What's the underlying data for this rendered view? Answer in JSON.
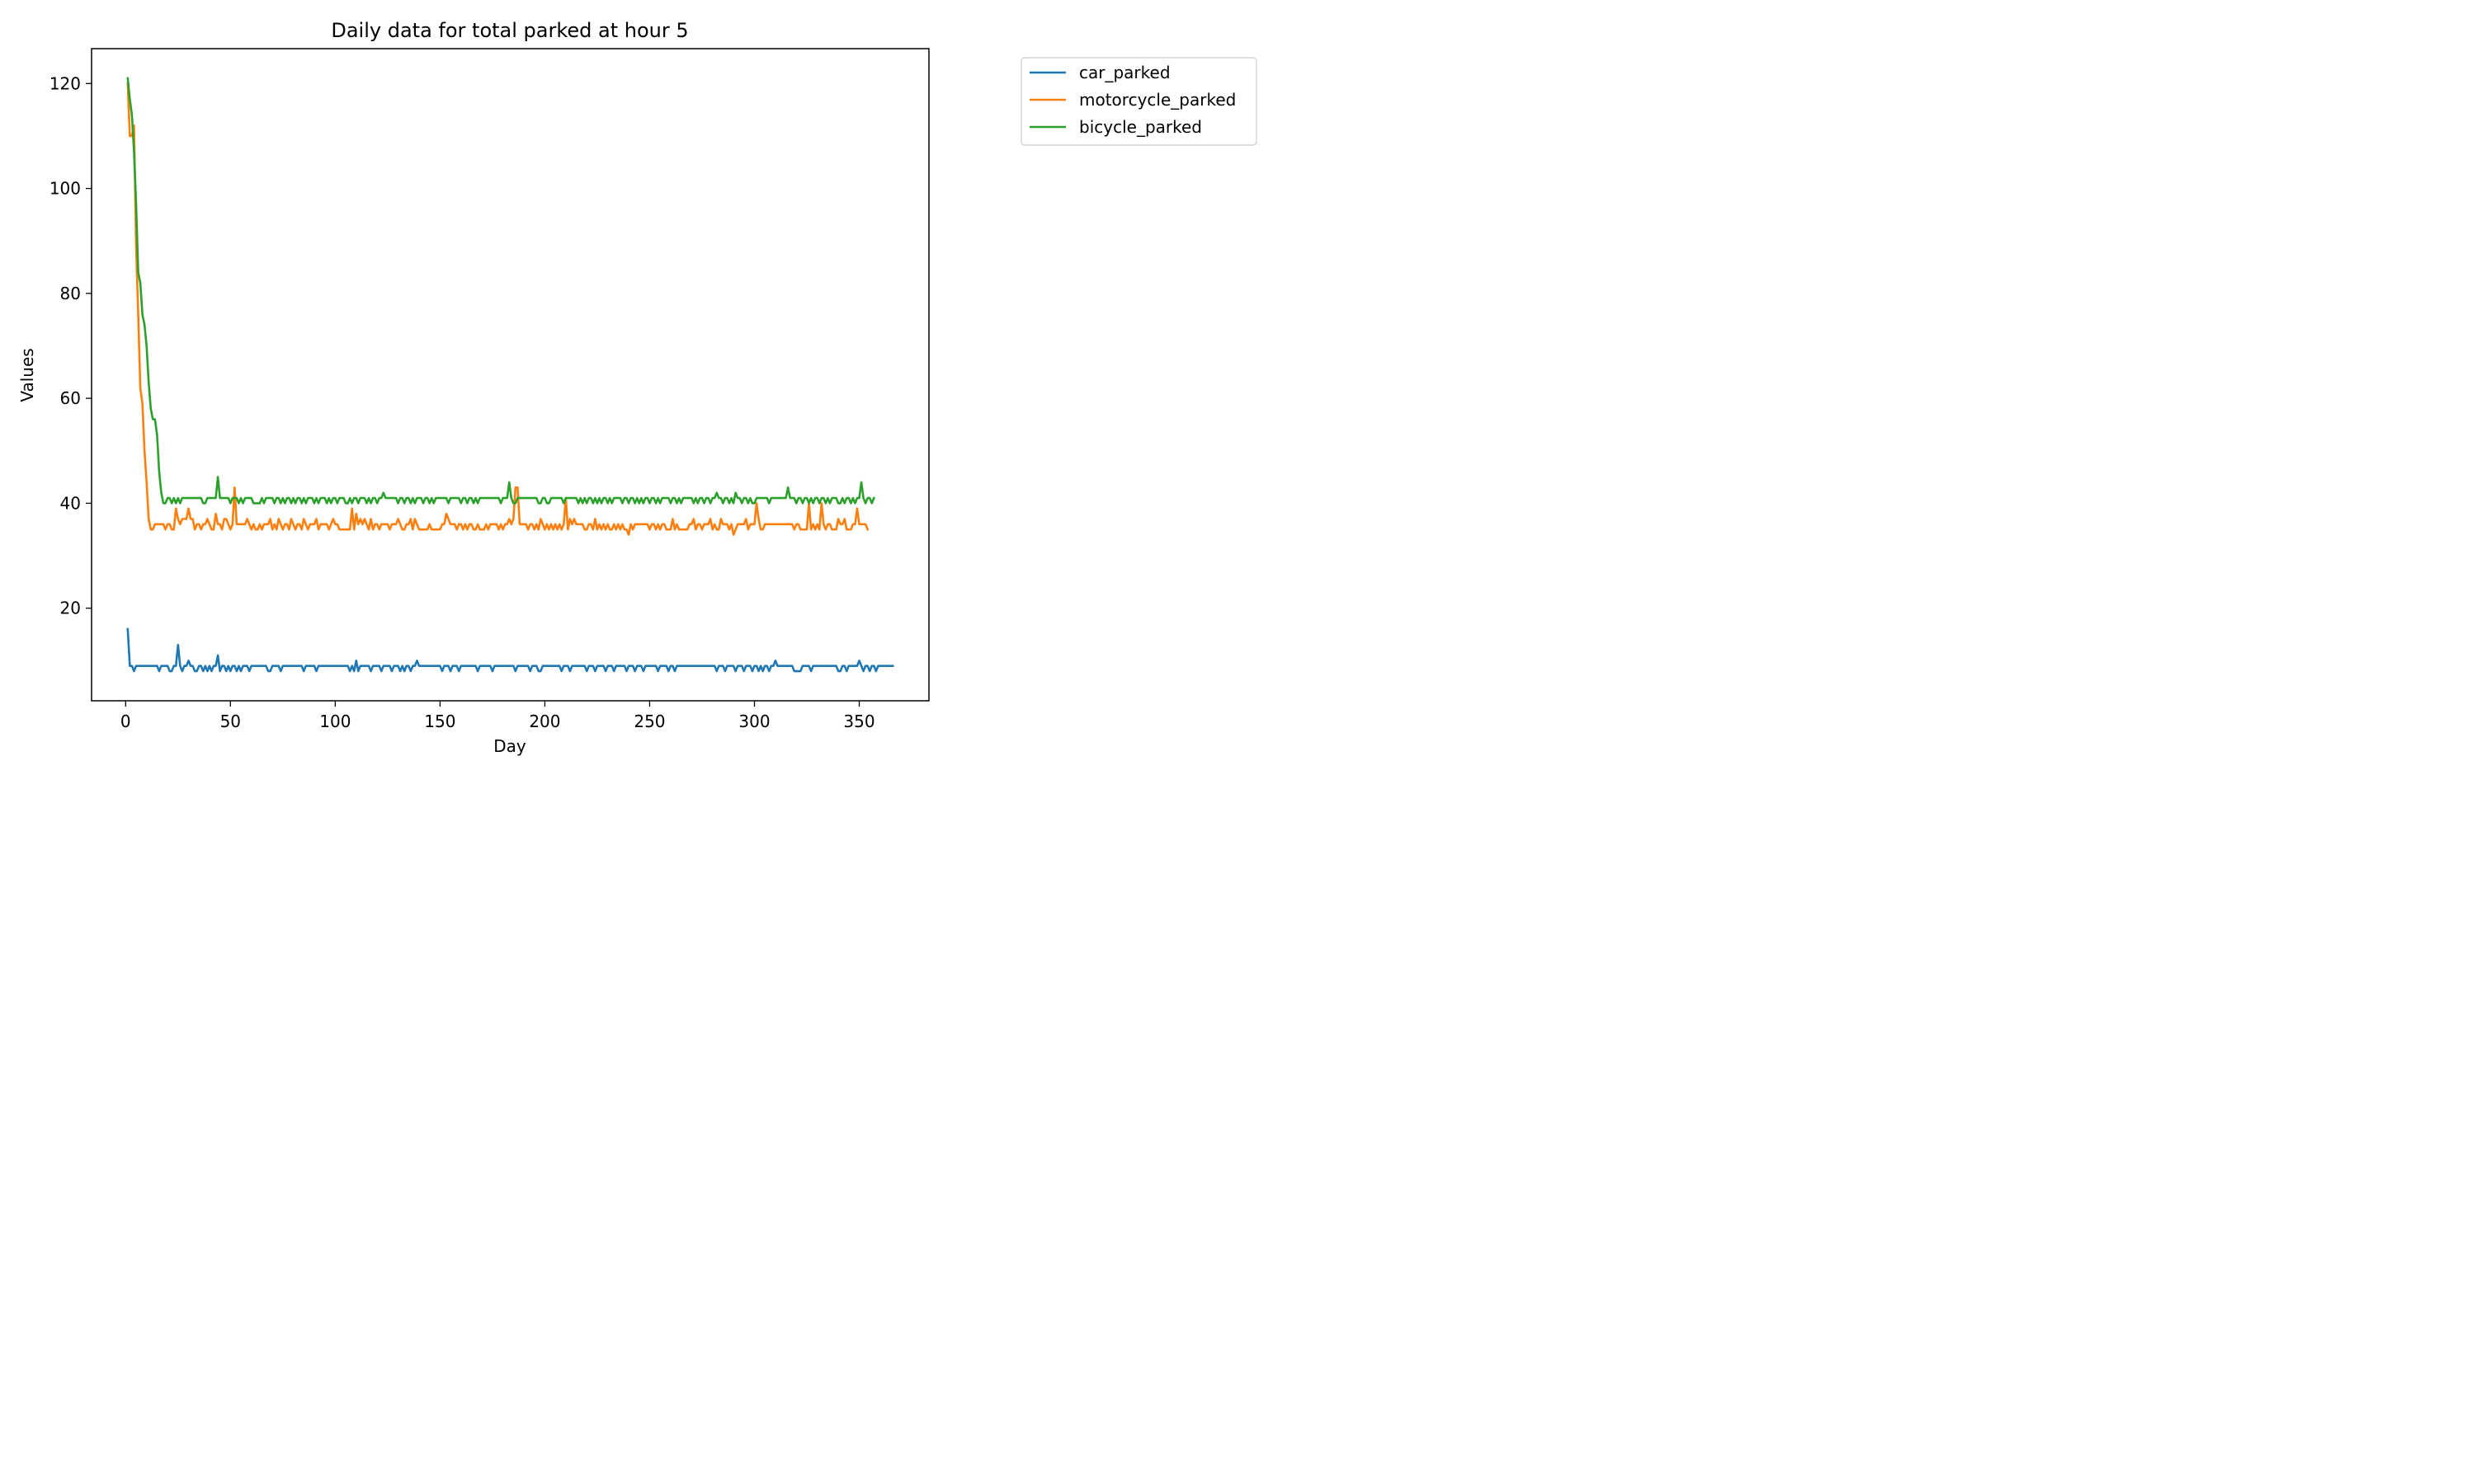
{
  "chart_data": {
    "type": "line",
    "title": "Daily data for total parked at hour 5",
    "xlabel": "Day",
    "ylabel": "Values",
    "xlim": [
      -16.25,
      383.25
    ],
    "ylim": [
      2.35,
      126.65
    ],
    "xticks": [
      0,
      50,
      100,
      150,
      200,
      250,
      300,
      350
    ],
    "yticks": [
      20,
      40,
      60,
      80,
      100,
      120
    ],
    "grid": false,
    "legend_position": "outside-top-right",
    "series": [
      {
        "name": "car_parked",
        "color": "#1f77b4",
        "x_start": 1,
        "values": [
          16,
          9,
          9,
          8,
          9,
          9,
          9,
          9,
          9,
          9,
          9,
          9,
          9,
          9,
          9,
          8,
          9,
          9,
          9,
          9,
          8,
          8,
          9,
          9,
          13,
          9,
          8,
          9,
          9,
          10,
          9,
          9,
          8,
          8,
          9,
          9,
          8,
          9,
          8,
          9,
          8,
          9,
          9,
          11,
          8,
          9,
          9,
          8,
          9,
          8,
          9,
          9,
          8,
          9,
          8,
          9,
          9,
          9,
          8,
          9,
          9,
          9,
          9,
          9,
          9,
          9,
          9,
          8,
          8,
          9,
          9,
          9,
          9,
          8,
          9,
          9,
          9,
          9,
          9,
          9,
          9,
          9,
          9,
          9,
          8,
          9,
          9,
          9,
          9,
          9,
          8,
          9,
          9,
          9,
          9,
          9,
          9,
          9,
          9,
          9,
          9,
          9,
          9,
          9,
          9,
          9,
          8,
          9,
          8,
          10,
          8,
          9,
          9,
          9,
          9,
          9,
          8,
          9,
          9,
          9,
          9,
          8,
          9,
          9,
          9,
          9,
          8,
          9,
          9,
          9,
          8,
          9,
          8,
          9,
          9,
          8,
          9,
          9,
          10,
          9,
          9,
          9,
          9,
          9,
          9,
          9,
          9,
          9,
          9,
          9,
          8,
          9,
          9,
          9,
          8,
          9,
          9,
          9,
          8,
          9,
          9,
          9,
          9,
          9,
          9,
          9,
          9,
          8,
          9,
          9,
          9,
          9,
          9,
          9,
          8,
          9,
          9,
          9,
          9,
          9,
          9,
          9,
          9,
          9,
          9,
          8,
          9,
          9,
          9,
          9,
          9,
          9,
          8,
          9,
          9,
          9,
          8,
          8,
          9,
          9,
          9,
          9,
          9,
          9,
          9,
          9,
          9,
          8,
          9,
          9,
          9,
          8,
          9,
          9,
          9,
          9,
          9,
          9,
          9,
          8,
          9,
          9,
          9,
          8,
          9,
          9,
          9,
          9,
          8,
          9,
          9,
          9,
          8,
          9,
          9,
          9,
          9,
          9,
          8,
          9,
          9,
          9,
          8,
          9,
          9,
          9,
          8,
          9,
          9,
          9,
          9,
          9,
          9,
          8,
          9,
          9,
          9,
          9,
          8,
          9,
          9,
          8,
          9,
          9,
          9,
          9,
          9,
          9,
          9,
          9,
          9,
          9,
          9,
          9,
          9,
          9,
          9,
          9,
          9,
          9,
          9,
          8,
          9,
          9,
          9,
          8,
          9,
          9,
          9,
          9,
          8,
          9,
          9,
          9,
          8,
          9,
          9,
          9,
          8,
          9,
          9,
          8,
          9,
          8,
          9,
          9,
          8,
          9,
          9,
          10,
          9,
          9,
          9,
          9,
          9,
          9,
          9,
          9,
          8,
          8,
          8,
          8,
          9,
          9,
          9,
          9,
          8,
          9,
          9,
          9,
          9,
          9,
          9,
          9,
          9,
          9,
          9,
          9,
          9,
          8,
          8,
          9,
          9,
          8,
          9,
          9,
          9,
          9,
          9,
          10,
          9,
          8,
          9,
          9,
          8,
          9,
          9,
          8,
          9,
          9,
          9,
          9,
          9,
          9,
          9,
          9
        ]
      },
      {
        "name": "motorcycle_parked",
        "color": "#ff7f0e",
        "x_start": 1,
        "values": [
          120,
          110,
          110,
          112,
          89,
          76,
          62,
          59,
          50,
          44,
          37,
          35,
          35,
          36,
          36,
          36,
          36,
          36,
          35,
          36,
          36,
          35,
          35,
          39,
          37,
          36,
          37,
          37,
          37,
          39,
          37,
          37,
          35,
          36,
          36,
          35,
          36,
          36,
          37,
          36,
          35,
          35,
          38,
          36,
          36,
          35,
          37,
          37,
          36,
          35,
          36,
          43,
          36,
          36,
          36,
          36,
          36,
          37,
          36,
          35,
          36,
          35,
          35,
          36,
          35,
          36,
          36,
          36,
          37,
          35,
          36,
          35,
          37,
          36,
          35,
          36,
          36,
          35,
          37,
          36,
          35,
          36,
          36,
          35,
          37,
          36,
          35,
          36,
          36,
          36,
          37,
          35,
          36,
          36,
          36,
          36,
          35,
          36,
          37,
          36,
          36,
          35,
          35,
          35,
          35,
          35,
          35,
          39,
          35,
          38,
          36,
          37,
          36,
          37,
          36,
          35,
          37,
          35,
          36,
          36,
          35,
          36,
          36,
          36,
          36,
          35,
          36,
          36,
          36,
          37,
          36,
          35,
          35,
          36,
          36,
          37,
          35,
          37,
          36,
          35,
          35,
          35,
          35,
          35,
          36,
          35,
          35,
          35,
          35,
          35,
          36,
          36,
          38,
          37,
          36,
          36,
          36,
          35,
          36,
          36,
          35,
          36,
          35,
          36,
          36,
          35,
          35,
          36,
          35,
          35,
          35,
          36,
          35,
          36,
          36,
          36,
          36,
          35,
          36,
          35,
          36,
          36,
          37,
          36,
          37,
          43,
          43,
          36,
          36,
          36,
          36,
          35,
          36,
          36,
          35,
          36,
          35,
          37,
          36,
          35,
          36,
          35,
          36,
          35,
          36,
          35,
          36,
          35,
          36,
          41,
          35,
          37,
          36,
          37,
          36,
          36,
          36,
          36,
          35,
          35,
          36,
          36,
          35,
          37,
          35,
          36,
          35,
          36,
          35,
          36,
          35,
          35,
          36,
          35,
          36,
          35,
          36,
          35,
          35,
          34,
          36,
          35,
          36,
          36,
          36,
          36,
          36,
          36,
          36,
          35,
          36,
          36,
          35,
          36,
          35,
          36,
          36,
          35,
          35,
          35,
          37,
          35,
          36,
          35,
          35,
          35,
          35,
          35,
          36,
          36,
          37,
          35,
          36,
          36,
          35,
          36,
          36,
          36,
          37,
          35,
          36,
          35,
          35,
          37,
          36,
          36,
          36,
          35,
          36,
          34,
          35,
          36,
          36,
          36,
          36,
          37,
          35,
          36,
          36,
          36,
          40,
          37,
          35,
          35,
          36,
          36,
          36,
          36,
          36,
          36,
          36,
          36,
          36,
          36,
          36,
          36,
          36,
          36,
          35,
          36,
          36,
          35,
          35,
          35,
          35,
          40,
          35,
          36,
          35,
          36,
          35,
          40,
          36,
          35,
          36,
          36,
          35,
          35,
          35,
          37,
          36,
          36,
          37,
          35,
          35,
          35,
          36,
          36,
          39,
          36,
          36,
          36,
          36,
          35
        ]
      },
      {
        "name": "bicycle_parked",
        "color": "#2ca02c",
        "x_start": 1,
        "values": [
          121,
          117,
          114,
          107,
          97,
          84,
          82,
          76,
          74,
          70,
          63,
          58,
          56,
          56,
          53,
          46,
          42,
          40,
          40,
          41,
          41,
          40,
          41,
          40,
          41,
          40,
          41,
          41,
          41,
          41,
          41,
          41,
          41,
          41,
          41,
          41,
          40,
          40,
          41,
          41,
          41,
          41,
          41,
          45,
          41,
          41,
          41,
          41,
          41,
          40,
          41,
          41,
          41,
          40,
          41,
          40,
          41,
          41,
          41,
          41,
          40,
          40,
          40,
          40,
          41,
          40,
          41,
          41,
          41,
          41,
          40,
          41,
          41,
          40,
          41,
          40,
          41,
          41,
          40,
          41,
          40,
          41,
          41,
          40,
          41,
          40,
          41,
          41,
          41,
          40,
          41,
          40,
          41,
          41,
          41,
          40,
          41,
          40,
          41,
          41,
          40,
          41,
          41,
          41,
          40,
          40,
          41,
          40,
          41,
          41,
          40,
          41,
          41,
          41,
          40,
          41,
          40,
          41,
          41,
          40,
          41,
          41,
          42,
          41,
          41,
          41,
          41,
          41,
          41,
          40,
          41,
          41,
          40,
          41,
          41,
          40,
          41,
          40,
          41,
          41,
          41,
          40,
          41,
          41,
          40,
          41,
          40,
          41,
          41,
          41,
          41,
          41,
          41,
          40,
          41,
          41,
          41,
          41,
          41,
          40,
          41,
          41,
          40,
          41,
          41,
          40,
          41,
          40,
          41,
          41,
          41,
          41,
          41,
          41,
          41,
          41,
          41,
          41,
          40,
          41,
          41,
          41,
          44,
          41,
          40,
          40,
          41,
          41,
          41,
          41,
          41,
          41,
          41,
          41,
          41,
          41,
          40,
          40,
          41,
          41,
          40,
          40,
          41,
          41,
          41,
          41,
          41,
          41,
          40,
          41,
          41,
          41,
          41,
          41,
          41,
          40,
          41,
          40,
          41,
          40,
          41,
          41,
          40,
          41,
          40,
          41,
          40,
          41,
          41,
          40,
          41,
          40,
          41,
          41,
          41,
          41,
          40,
          41,
          41,
          40,
          41,
          41,
          40,
          41,
          40,
          41,
          40,
          41,
          41,
          40,
          41,
          41,
          40,
          41,
          40,
          41,
          41,
          41,
          41,
          40,
          41,
          41,
          40,
          41,
          40,
          41,
          41,
          41,
          41,
          41,
          40,
          41,
          40,
          41,
          41,
          40,
          41,
          41,
          40,
          41,
          41,
          42,
          41,
          41,
          40,
          41,
          41,
          40,
          41,
          40,
          42,
          41,
          41,
          40,
          41,
          41,
          40,
          41,
          40,
          40,
          41,
          41,
          41,
          41,
          41,
          41,
          40,
          41,
          41,
          41,
          41,
          41,
          41,
          41,
          41,
          43,
          41,
          41,
          41,
          40,
          41,
          41,
          40,
          41,
          41,
          40,
          41,
          40,
          41,
          41,
          40,
          41,
          41,
          40,
          41,
          40,
          41,
          41,
          41,
          40,
          40,
          41,
          40,
          41,
          41,
          40,
          41,
          40,
          41,
          41,
          44,
          41,
          40,
          41,
          41,
          40,
          41
        ]
      }
    ]
  }
}
